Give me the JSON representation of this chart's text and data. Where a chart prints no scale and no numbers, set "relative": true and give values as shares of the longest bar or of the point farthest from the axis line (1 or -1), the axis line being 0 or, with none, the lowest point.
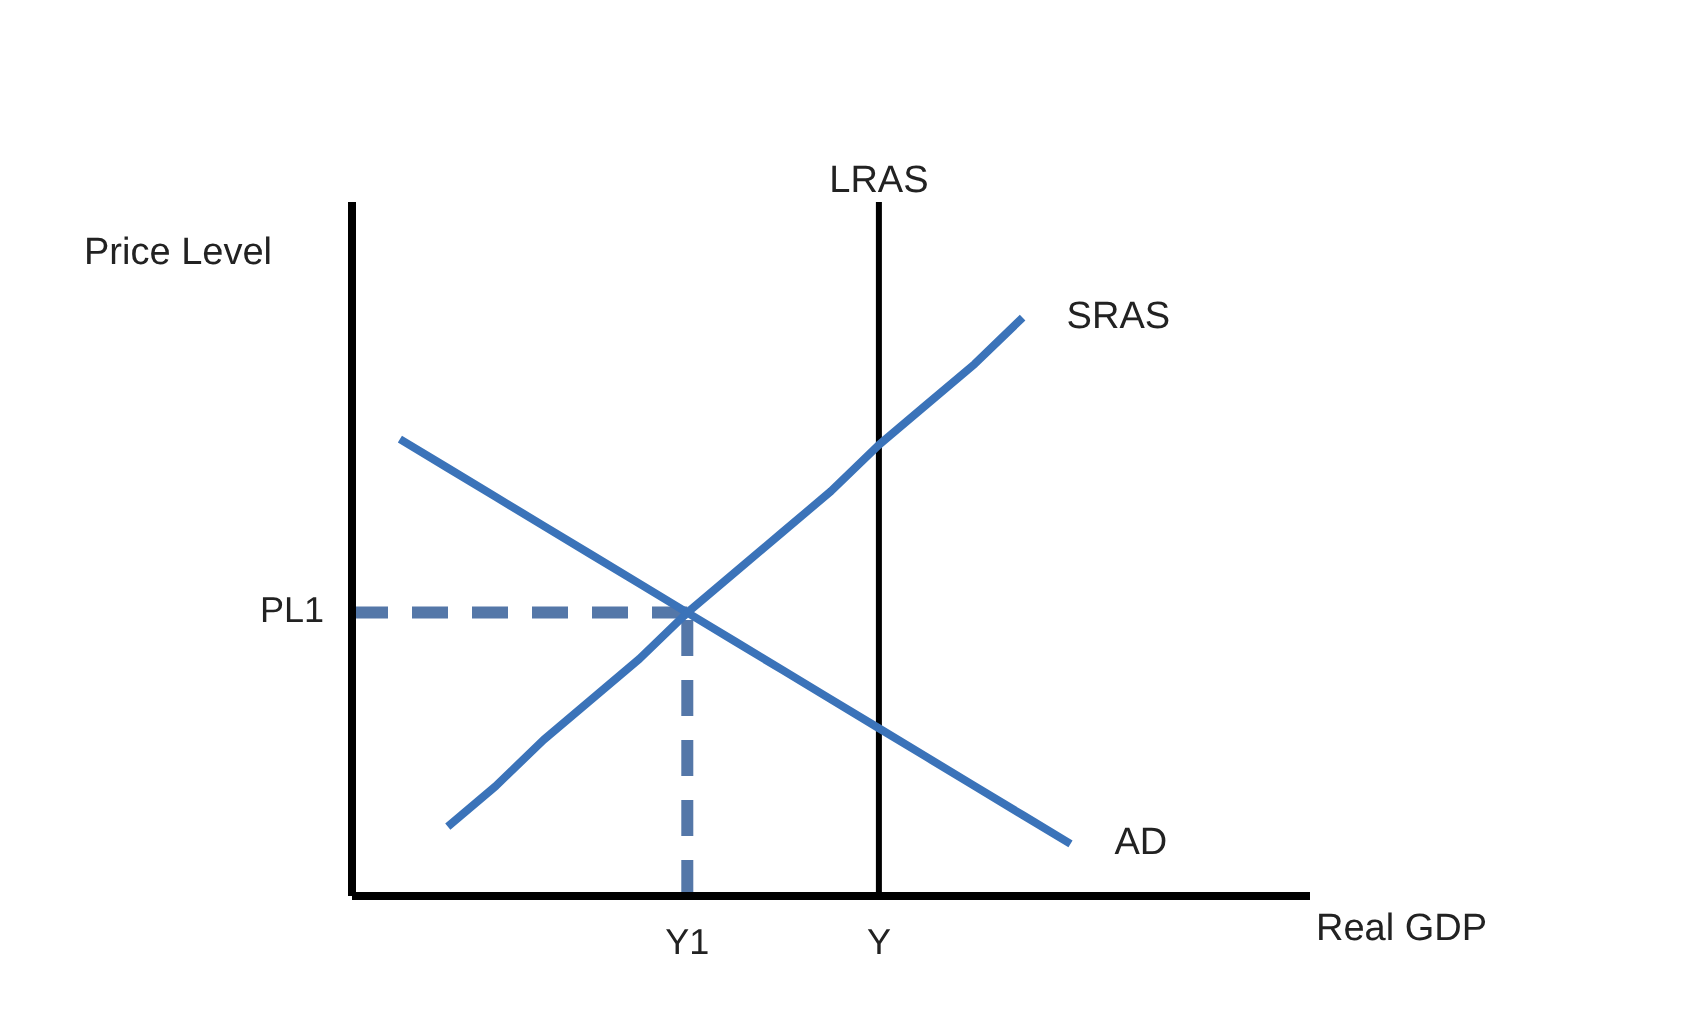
{
  "chart_data": {
    "type": "line",
    "relative": true,
    "xlabel": "Real GDP",
    "ylabel": "Price Level",
    "categories": [
      null,
      null,
      null,
      null,
      null,
      null,
      null,
      "Y1",
      null,
      null,
      null,
      "Y",
      null,
      null,
      null,
      null,
      null,
      null,
      null,
      null,
      null
    ],
    "marker": "none",
    "ref_lines": [
      {
        "axis": "x",
        "value": "Y1",
        "color": "#5477a8",
        "line_style": "dashed"
      },
      {
        "axis": "x",
        "value": "Y",
        "label": "LRAS",
        "color": "#000000",
        "line_style": "solid"
      }
    ],
    "series": [
      {
        "name": "PL1",
        "color": "#5477a8",
        "line_style": "dashed",
        "values": [
          0.49,
          0.49,
          0.49,
          0.49,
          0.49,
          0.49,
          0.49,
          0.49,
          null,
          null,
          null,
          null,
          null,
          null,
          null,
          null,
          null,
          null,
          null,
          null,
          null
        ]
      },
      {
        "name": "AD",
        "color": "#3b73b9",
        "line_style": "solid",
        "values": [
          null,
          0.79,
          0.74,
          0.69,
          0.64,
          0.59,
          0.54,
          0.49,
          0.44,
          0.39,
          0.34,
          0.29,
          0.24,
          0.19,
          0.14,
          0.09,
          null,
          null,
          null,
          null,
          null
        ]
      },
      {
        "name": "SRAS",
        "color": "#3b73b9",
        "line_style": "solid",
        "values": [
          null,
          null,
          0.12,
          0.19,
          0.27,
          0.34,
          0.41,
          0.49,
          0.56,
          0.63,
          0.7,
          0.78,
          0.85,
          0.92,
          1,
          null,
          null,
          null,
          null,
          null,
          null
        ]
      }
    ]
  }
}
